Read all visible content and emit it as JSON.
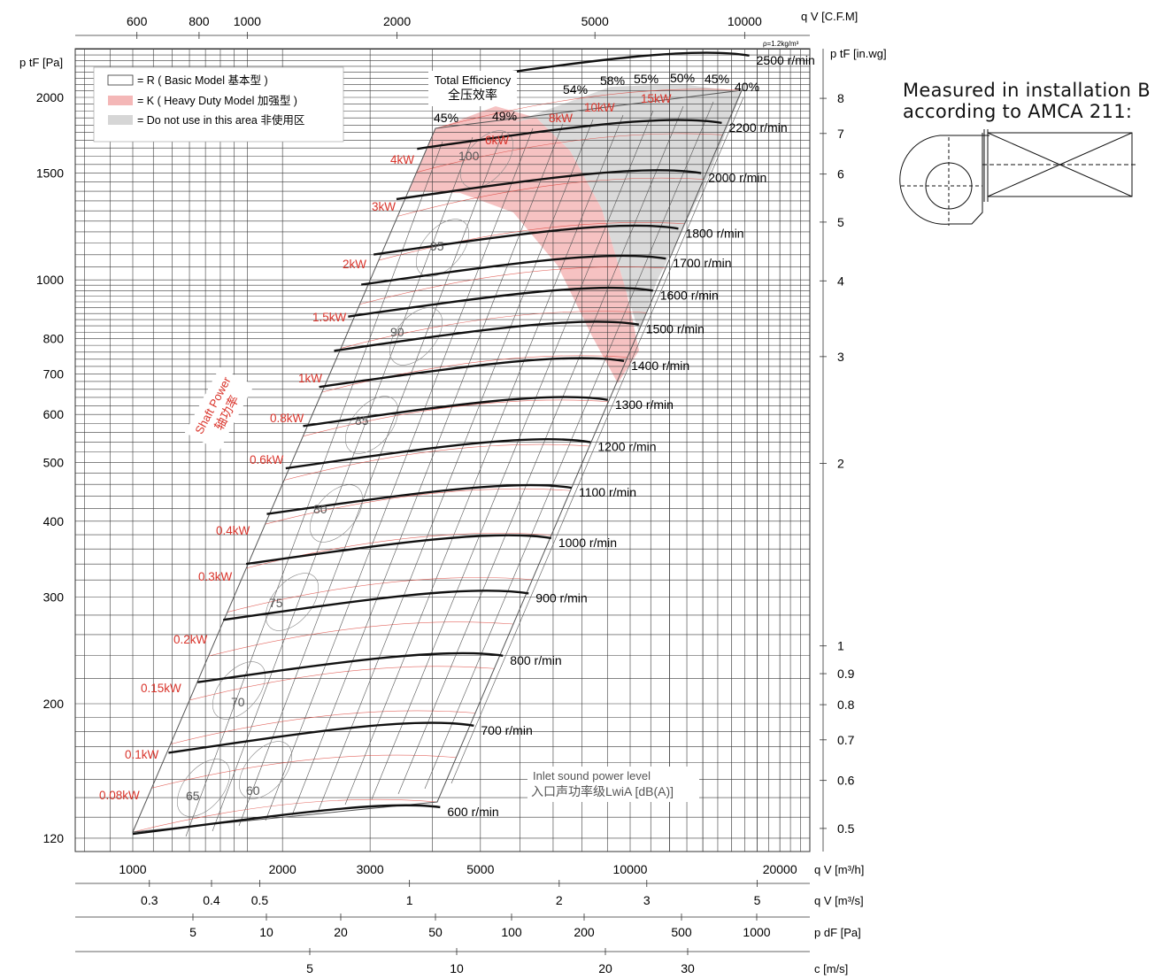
{
  "chart_data": {
    "type": "line",
    "title": "",
    "axes": {
      "primary_x": {
        "label": "q_V [m³/h]",
        "scale": "log",
        "range": [
          750,
          24000
        ],
        "ticks": [
          1000,
          2000,
          3000,
          5000,
          10000,
          20000
        ]
      },
      "primary_y": {
        "label": "p_tF [Pa]",
        "scale": "log",
        "range": [
          115,
          2480
        ],
        "ticks": [
          120,
          200,
          300,
          400,
          500,
          600,
          700,
          800,
          1000,
          1500,
          2000
        ]
      },
      "top_x": {
        "label": "q_V [C.F.M]",
        "ticks": [
          600,
          800,
          1000,
          2000,
          5000,
          10000
        ]
      },
      "right_y": {
        "label": "p_tF [in.wg]",
        "ticks": [
          0.5,
          0.6,
          0.7,
          0.8,
          0.9,
          1,
          2,
          3,
          4,
          5,
          6,
          7,
          8
        ]
      },
      "bottom_scales": [
        {
          "label": "q_V [m³/s]",
          "ticks": [
            0.3,
            0.4,
            0.5,
            1,
            2,
            3,
            5
          ]
        },
        {
          "label": "p_dF [Pa]",
          "ticks": [
            5,
            10,
            20,
            50,
            100,
            200,
            500,
            1000
          ]
        },
        {
          "label": "c [m/s]",
          "ticks": [
            5,
            10,
            20,
            30
          ]
        }
      ]
    },
    "density_note": "ρ=1.2kg/m³",
    "legend": {
      "placement": "top-left",
      "items": [
        {
          "key": "R",
          "text": "= R ( Basic Model 基本型 )",
          "color": "#ffffff"
        },
        {
          "key": "K",
          "text": "= K ( Heavy Duty Model 加强型 )",
          "color": "#f4b7b7"
        },
        {
          "key": "X",
          "text": "= Do not use in this area  非使用区",
          "color": "#d6d6d6"
        }
      ]
    },
    "series": [
      {
        "name": "600 r/min",
        "x": [
          1000,
          2000,
          3200,
          4150
        ],
        "y": [
          122,
          131,
          139,
          135
        ]
      },
      {
        "name": "700 r/min",
        "x": [
          1180,
          2300,
          3700,
          4850
        ],
        "y": [
          166,
          180,
          191,
          184
        ]
      },
      {
        "name": "800 r/min",
        "x": [
          1350,
          2650,
          4250,
          5550
        ],
        "y": [
          217,
          235,
          248,
          240
        ]
      },
      {
        "name": "900 r/min",
        "x": [
          1520,
          3000,
          4800,
          6250
        ],
        "y": [
          275,
          298,
          315,
          304
        ]
      },
      {
        "name": "1000 r/min",
        "x": [
          1690,
          3330,
          5350,
          6940
        ],
        "y": [
          340,
          368,
          389,
          375
        ]
      },
      {
        "name": "1100 r/min",
        "x": [
          1860,
          3660,
          5880,
          7630
        ],
        "y": [
          411,
          445,
          470,
          454
        ]
      },
      {
        "name": "1200 r/min",
        "x": [
          2030,
          4000,
          6420,
          8330
        ],
        "y": [
          489,
          530,
          560,
          540
        ]
      },
      {
        "name": "1300 r/min",
        "x": [
          2200,
          4330,
          6950,
          9020
        ],
        "y": [
          574,
          622,
          657,
          634
        ]
      },
      {
        "name": "1400 r/min",
        "x": [
          2370,
          4660,
          7490,
          9720
        ],
        "y": [
          666,
          721,
          762,
          735
        ]
      },
      {
        "name": "1500 r/min",
        "x": [
          2540,
          5000,
          8020,
          10410
        ],
        "y": [
          764,
          828,
          875,
          844
        ]
      },
      {
        "name": "1600 r/min",
        "x": [
          2710,
          5330,
          8560,
          11110
        ],
        "y": [
          870,
          942,
          995,
          960
        ]
      },
      {
        "name": "1700 r/min",
        "x": [
          2880,
          5660,
          9090,
          11800
        ],
        "y": [
          982,
          1064,
          1124,
          1084
        ]
      },
      {
        "name": "1800 r/min",
        "x": [
          3050,
          6000,
          9630,
          12500
        ],
        "y": [
          1101,
          1193,
          1260,
          1215
        ]
      },
      {
        "name": "2000 r/min",
        "x": [
          3390,
          6660,
          10700,
          13890
        ],
        "y": [
          1359,
          1472,
          1555,
          1500
        ]
      },
      {
        "name": "2200 r/min",
        "x": [
          3730,
          7330,
          11770,
          15280
        ],
        "y": [
          1645,
          1782,
          1882,
          1815
        ]
      },
      {
        "name": "2500 r/min",
        "x": [
          4240,
          8330,
          13370,
          17360
        ],
        "y": [
          2124,
          2301,
          2430,
          2344
        ]
      }
    ],
    "shaft_power_label": "Shaft Power\n轴功率",
    "shaft_power_lines_kW": [
      "0.08kW",
      "0.1kW",
      "0.15kW",
      "0.2kW",
      "0.3kW",
      "0.4kW",
      "0.6kW",
      "0.8kW",
      "1kW",
      "1.5kW",
      "2kW",
      "3kW",
      "4kW",
      "6kW",
      "8kW",
      "10kW",
      "15kW"
    ],
    "efficiency_label": "Total Efficiency\n全压效率",
    "efficiency_lines_pct": [
      "45%",
      "49%",
      "54%",
      "58%",
      "55%",
      "50%",
      "45%",
      "40%"
    ],
    "sound_label": "Inlet sound power level\n入口声功率级LwiA [dB(A)]",
    "sound_levels": [
      "60",
      "65",
      "70",
      "75",
      "80",
      "85",
      "90",
      "95",
      "100"
    ],
    "grid": true
  },
  "installation_note": {
    "line1": "Measured in installation B",
    "line2": "according to AMCA 211:"
  }
}
